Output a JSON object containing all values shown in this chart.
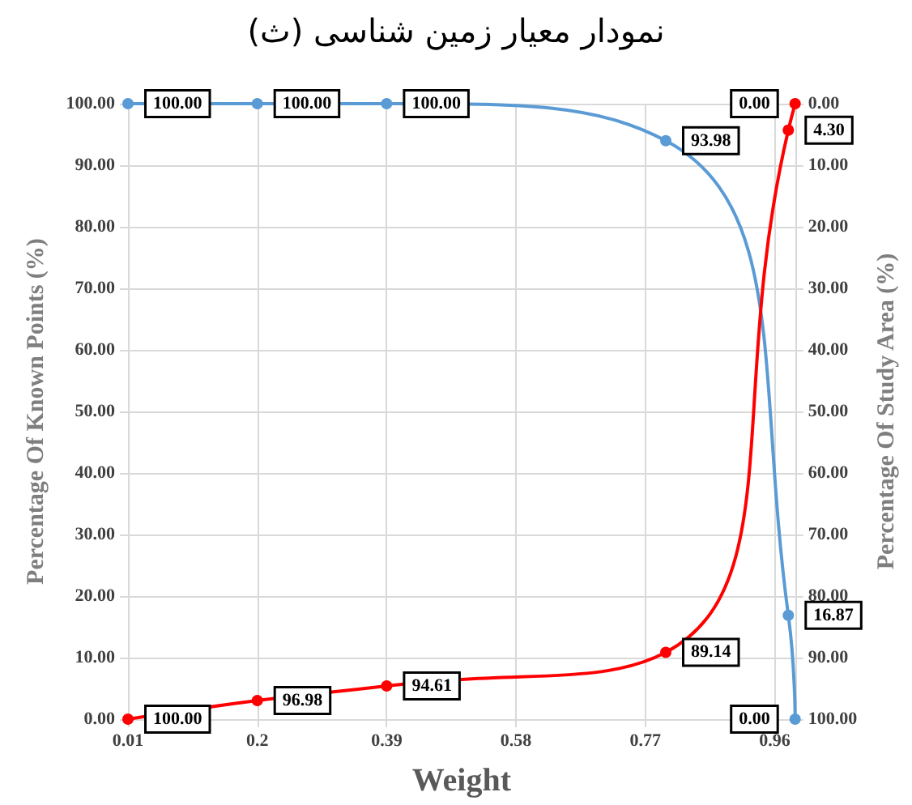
{
  "chart_data": {
    "type": "line",
    "title": "(ث) نمودار معیار زمین شناسی",
    "xlabel": "Weight",
    "ylabel": "Percentage Of Known Points (%)",
    "y2label": "Percentage Of Study Area (%)",
    "x": [
      0.01,
      0.2,
      0.39,
      0.8,
      0.98,
      0.99
    ],
    "series": [
      {
        "color": "#5b9bd5",
        "values": [
          100,
          100,
          100,
          93.98,
          16.87,
          0
        ],
        "value_labels": [
          "100.00",
          "100.00",
          "100.00",
          "93.98",
          "16.87",
          "0.00"
        ]
      },
      {
        "color": "#ff0000",
        "axis": "y2",
        "values": [
          100,
          96.98,
          94.61,
          89.14,
          4.3,
          0
        ],
        "value_labels": [
          "100.00",
          "96.98",
          "94.61",
          "89.14",
          "4.30",
          "0.00"
        ]
      }
    ],
    "xlim": [
      0.01,
      0.99
    ],
    "xticks": [
      0.01,
      0.2,
      0.39,
      0.58,
      0.77,
      0.96
    ],
    "ylim": [
      0,
      100
    ],
    "yticks": [
      {
        "value": 0,
        "label": "0.00"
      },
      {
        "value": 10,
        "label": "10.00"
      },
      {
        "value": 20,
        "label": "20.00"
      },
      {
        "value": 30,
        "label": "30.00"
      },
      {
        "value": 40,
        "label": "40.00"
      },
      {
        "value": 50,
        "label": "50.00"
      },
      {
        "value": 60,
        "label": "60.00"
      },
      {
        "value": 70,
        "label": "70.00"
      },
      {
        "value": 80,
        "label": "80.00"
      },
      {
        "value": 90,
        "label": "90.00"
      },
      {
        "value": 100,
        "label": "100.00"
      }
    ],
    "y2lim": [
      100,
      0
    ],
    "y2ticks": [
      {
        "value": 0,
        "label": "0.00"
      },
      {
        "value": 10,
        "label": "10.00"
      },
      {
        "value": 20,
        "label": "20.00"
      },
      {
        "value": 30,
        "label": "30.00"
      },
      {
        "value": 40,
        "label": "40.00"
      },
      {
        "value": 50,
        "label": "50.00"
      },
      {
        "value": 60,
        "label": "60.00"
      },
      {
        "value": 70,
        "label": "70.00"
      },
      {
        "value": 80,
        "label": "80.00"
      },
      {
        "value": 90,
        "label": "90.00"
      },
      {
        "value": 100,
        "label": "100.00"
      }
    ],
    "grid": true,
    "marker": "circle",
    "line_style": "solid"
  }
}
